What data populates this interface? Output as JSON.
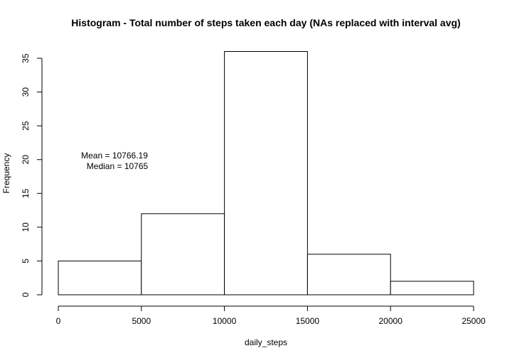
{
  "chart_data": {
    "type": "bar",
    "title": "Histogram - Total number of steps taken each day (NAs replaced with interval avg)",
    "xlabel": "daily_steps",
    "ylabel": "Frequency",
    "bins": [
      {
        "from": 0,
        "to": 5000,
        "count": 5
      },
      {
        "from": 5000,
        "to": 10000,
        "count": 12
      },
      {
        "from": 10000,
        "to": 15000,
        "count": 36
      },
      {
        "from": 15000,
        "to": 20000,
        "count": 6
      },
      {
        "from": 20000,
        "to": 25000,
        "count": 2
      }
    ],
    "xlim": [
      0,
      25000
    ],
    "ylim": [
      0,
      35
    ],
    "x_ticks": [
      "0",
      "5000",
      "10000",
      "15000",
      "20000",
      "25000"
    ],
    "y_ticks": [
      "0",
      "5",
      "10",
      "15",
      "20",
      "25",
      "30",
      "35"
    ],
    "annotations": [
      "Mean =  10766.19",
      "Median = 10765"
    ],
    "grid": false,
    "legend": "none"
  }
}
